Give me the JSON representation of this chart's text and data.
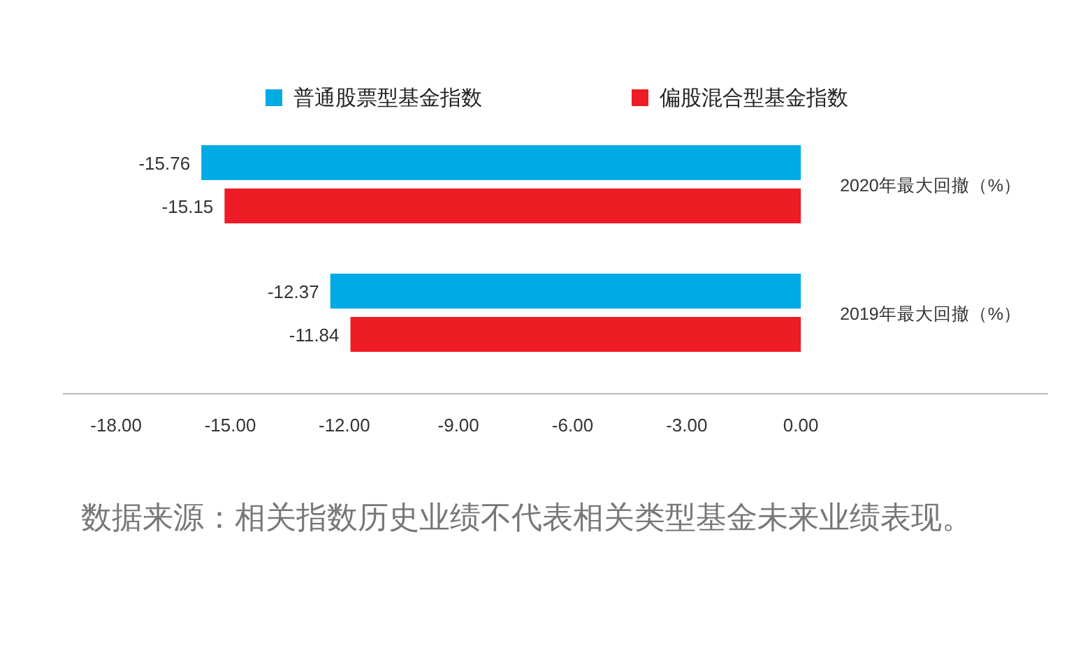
{
  "chart_data": {
    "type": "bar",
    "orientation": "horizontal",
    "categories": [
      "2020年最大回撤（%）",
      "2019年最大回撤（%）"
    ],
    "series": [
      {
        "name": "普通股票型基金指数",
        "color": "#00aae4",
        "values": [
          -15.76,
          -12.37
        ]
      },
      {
        "name": "偏股混合型基金指数",
        "color": "#ee1c24",
        "values": [
          -15.15,
          -11.84
        ]
      }
    ],
    "xlim": [
      -19.4,
      6.5
    ],
    "xticks": [
      {
        "value": -18,
        "label": "-18.00"
      },
      {
        "value": -15,
        "label": "-15.00"
      },
      {
        "value": -12,
        "label": "-12.00"
      },
      {
        "value": -9,
        "label": "-9.00"
      },
      {
        "value": -6,
        "label": "-6.00"
      },
      {
        "value": -3,
        "label": "-3.00"
      },
      {
        "value": 0,
        "label": "0.00"
      }
    ],
    "data_labels": true,
    "legend": "top",
    "grid": false,
    "annotations": [
      "数据来源：相关指数历史业绩不代表相关类型基金未来业绩表现。"
    ]
  }
}
